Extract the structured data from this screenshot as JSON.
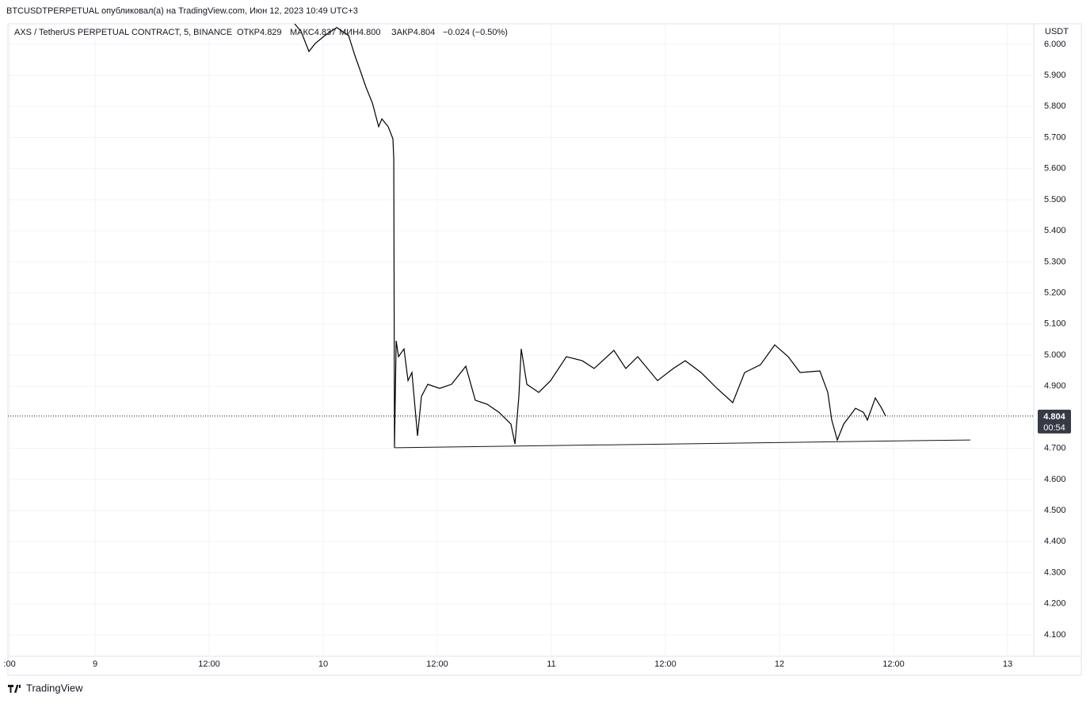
{
  "chart_data": {
    "type": "line",
    "header": "BTCUSDTPERPETUAL опубликовал(а) на TradingView.com, Июн 12, 2023 10:49 UTC+3",
    "symbol": "AXS / TetherUS PERPETUAL CONTRACT, 5, BINANCE",
    "open": "ОТКР4.829",
    "high": "МАКС4.837",
    "low": "МИН4.800",
    "close": "ЗАКР4.804",
    "change": "−0.024 (−0.50%)",
    "currency": "USDT",
    "last_price": {
      "value": 4.804,
      "label": "4.804"
    },
    "countdown": "00:54",
    "brand": "TradingView",
    "grid": true,
    "xlim": [
      14.83,
      122.75
    ],
    "ylim": [
      4.031,
      6.066
    ],
    "xticks": [
      {
        "value": 15,
        "label": ":00"
      },
      {
        "value": 24,
        "label": "9"
      },
      {
        "value": 36,
        "label": "12:00"
      },
      {
        "value": 48,
        "label": "10"
      },
      {
        "value": 60,
        "label": "12:00"
      },
      {
        "value": 72,
        "label": "11"
      },
      {
        "value": 84,
        "label": "12:00"
      },
      {
        "value": 96,
        "label": "12"
      },
      {
        "value": 108,
        "label": "12:00"
      },
      {
        "value": 120,
        "label": "13"
      }
    ],
    "yticks": [
      {
        "value": 4.1,
        "label": "4.100"
      },
      {
        "value": 4.2,
        "label": "4.200"
      },
      {
        "value": 4.3,
        "label": "4.300"
      },
      {
        "value": 4.4,
        "label": "4.400"
      },
      {
        "value": 4.5,
        "label": "4.500"
      },
      {
        "value": 4.6,
        "label": "4.600"
      },
      {
        "value": 4.7,
        "label": "4.700"
      },
      {
        "value": 4.8,
        "label": "4.800"
      },
      {
        "value": 4.9,
        "label": "4.900"
      },
      {
        "value": 5.0,
        "label": "5.000"
      },
      {
        "value": 5.1,
        "label": "5.100"
      },
      {
        "value": 5.2,
        "label": "5.200"
      },
      {
        "value": 5.3,
        "label": "5.300"
      },
      {
        "value": 5.4,
        "label": "5.400"
      },
      {
        "value": 5.5,
        "label": "5.500"
      },
      {
        "value": 5.6,
        "label": "5.600"
      },
      {
        "value": 5.7,
        "label": "5.700"
      },
      {
        "value": 5.8,
        "label": "5.800"
      },
      {
        "value": 5.9,
        "label": "5.900"
      },
      {
        "value": 6.0,
        "label": "6.000"
      }
    ],
    "x": [
      45.0,
      45.67,
      46.5,
      47.17,
      48.17,
      49.42,
      50.67,
      51.33,
      51.92,
      52.5,
      53.17,
      53.83,
      54.17,
      54.83,
      55.33,
      55.42,
      55.5,
      55.67,
      55.92,
      56.5,
      56.92,
      57.33,
      57.92,
      58.33,
      59.0,
      60.25,
      61.5,
      63.0,
      64.0,
      65.25,
      66.5,
      67.75,
      68.17,
      68.58,
      68.83,
      69.42,
      70.67,
      71.92,
      73.58,
      75.25,
      76.5,
      78.58,
      79.83,
      81.08,
      83.17,
      84.83,
      86.08,
      87.75,
      89.42,
      91.08,
      92.33,
      94.0,
      95.5,
      96.92,
      98.17,
      100.25,
      101.08,
      101.5,
      102.08,
      102.75,
      104.0,
      104.83,
      105.25,
      106.08,
      106.75,
      107.17
    ],
    "series": [
      {
        "name": "AXSUSDT",
        "color": "#000000",
        "values": [
          6.066,
          6.041,
          5.977,
          6.003,
          6.028,
          6.054,
          6.028,
          5.964,
          5.913,
          5.862,
          5.811,
          5.735,
          5.76,
          5.735,
          5.696,
          5.633,
          4.702,
          5.046,
          4.995,
          5.02,
          4.918,
          4.944,
          4.74,
          4.867,
          4.906,
          4.893,
          4.906,
          4.964,
          4.855,
          4.842,
          4.816,
          4.778,
          4.714,
          4.867,
          5.02,
          4.906,
          4.88,
          4.918,
          4.995,
          4.982,
          4.957,
          5.015,
          4.957,
          4.995,
          4.918,
          4.957,
          4.982,
          4.944,
          4.893,
          4.847,
          4.944,
          4.969,
          5.033,
          4.995,
          4.944,
          4.949,
          4.88,
          4.791,
          4.727,
          4.778,
          4.829,
          4.816,
          4.791,
          4.862,
          4.829,
          4.804
        ]
      }
    ],
    "trend_line": {
      "x": [
        55.5,
        116.08
      ],
      "values": [
        4.702,
        4.727
      ]
    }
  }
}
